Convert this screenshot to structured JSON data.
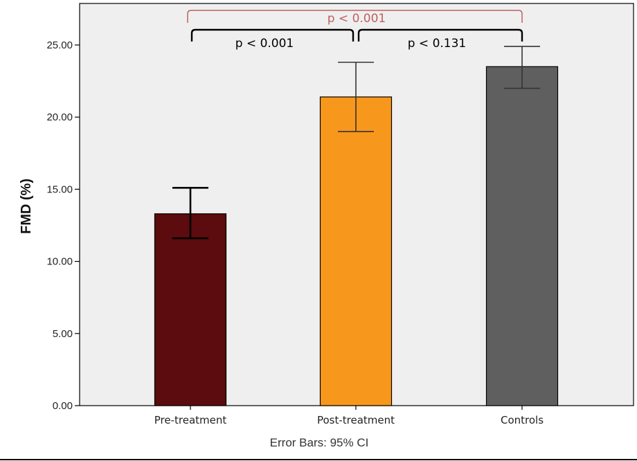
{
  "chart_data": {
    "type": "bar",
    "categories": [
      "Pre-treatment",
      "Post-treatment",
      "Controls"
    ],
    "values": [
      13.3,
      21.4,
      23.5
    ],
    "error_low": [
      11.6,
      19.0,
      22.0
    ],
    "error_high": [
      15.1,
      23.8,
      24.9
    ],
    "colors": [
      "#5c0b0e",
      "#f7971c",
      "#5f5f5f"
    ],
    "ylabel": "FMD (%)",
    "ylim": [
      0,
      25
    ],
    "yticks": [
      "0.00",
      "5.00",
      "10.00",
      "15.00",
      "20.00",
      "25.00"
    ],
    "footnote": "Error Bars: 95% CI",
    "plot_background": "#efefef",
    "comparisons": [
      {
        "from": 0,
        "to": 1,
        "label": "p < 0.001",
        "color": "#000000"
      },
      {
        "from": 1,
        "to": 2,
        "label": "p < 0.131",
        "color": "#000000"
      },
      {
        "from": 0,
        "to": 2,
        "label": "p < 0.001",
        "color": "#c06060"
      }
    ]
  }
}
